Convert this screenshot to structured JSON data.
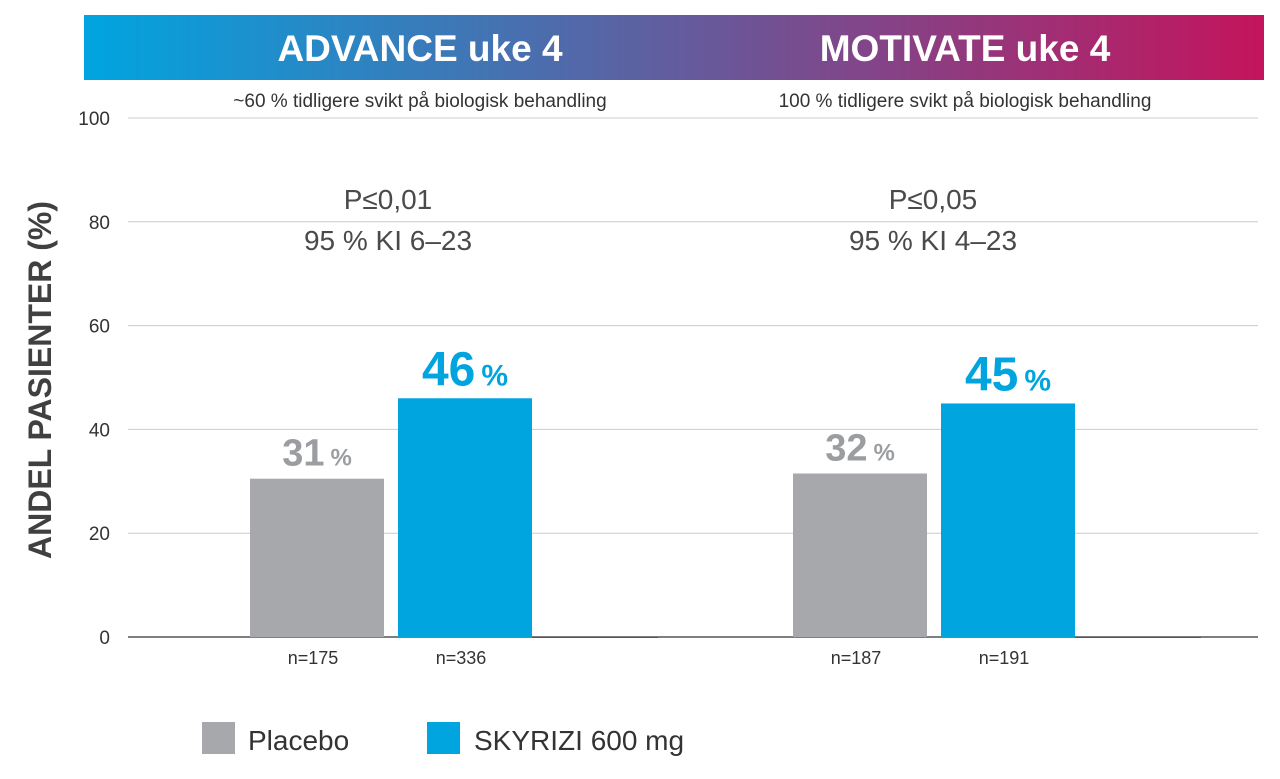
{
  "colors": {
    "placebo": "#a6a8ab",
    "skyrizi": "#00a5e0",
    "banner_start": "#00a5e0",
    "banner_end": "#c4145c",
    "grid": "#cccccc"
  },
  "chart_data": {
    "type": "bar",
    "ylabel": "ANDEL PASIENTER (%)",
    "ylim": [
      0,
      100
    ],
    "yticks": [
      "0",
      "20",
      "40",
      "60",
      "80",
      "100"
    ],
    "grid": true,
    "legend_position": "bottom-left",
    "series": [
      {
        "name": "Placebo",
        "color": "#a6a8ab"
      },
      {
        "name": "SKYRIZI 600 mg",
        "color": "#00a5e0"
      }
    ],
    "groups": [
      {
        "title": "ADVANCE uke 4",
        "subtitle": "~60 % tidligere svikt på biologisk behandling",
        "p_value": "P≤0,01",
        "ci": "95 % KI 6–23",
        "values": [
          30.5,
          46
        ],
        "value_labels": [
          "31",
          "46"
        ],
        "percent_sign": "%",
        "n_labels": [
          "n=175",
          "n=336"
        ]
      },
      {
        "title": "MOTIVATE uke 4",
        "subtitle": "100 % tidligere svikt på biologisk behandling",
        "p_value": "P≤0,05",
        "ci": "95 % KI 4–23",
        "values": [
          31.5,
          45
        ],
        "value_labels": [
          "32",
          "45"
        ],
        "percent_sign": "%",
        "n_labels": [
          "n=187",
          "n=191"
        ]
      }
    ]
  }
}
